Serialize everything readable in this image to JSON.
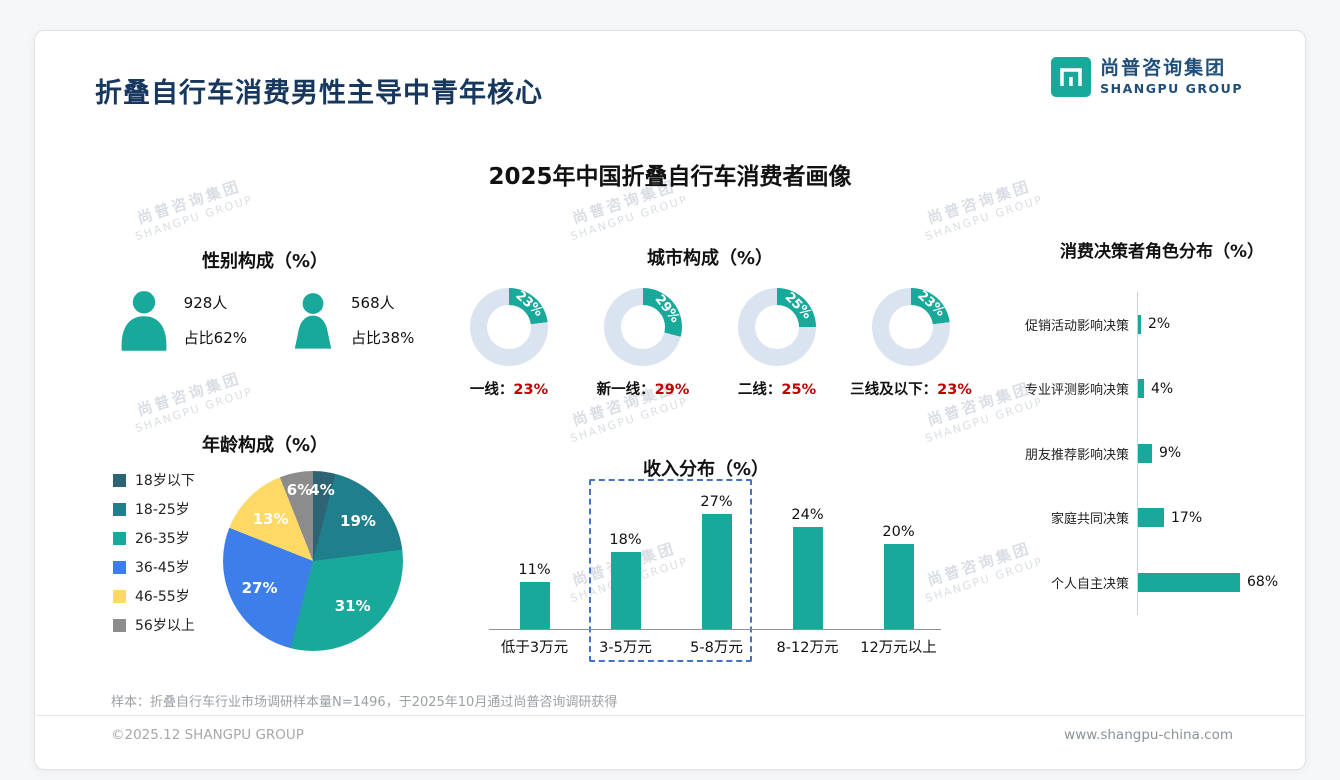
{
  "page": {
    "title": "折叠自行车消费男性主导中青年核心",
    "subtitle": "2025年中国折叠自行车消费者画像",
    "logo": {
      "cn": "尚普咨询集团",
      "en": "SHANGPU GROUP"
    },
    "watermark": {
      "cn": "尚普咨询集团",
      "en": "SHANGPU GROUP"
    },
    "footnote": "样本：折叠自行车行业市场调研样本量N=1496，于2025年10月通过尚普咨询调研获得",
    "footer_left": "©2025.12 SHANGPU GROUP",
    "footer_right": "www.shangpu-china.com"
  },
  "colors": {
    "accent_teal": "#18A99B",
    "navy": "#17375E",
    "red": "#C00000",
    "donut_rest": "#D9E4F0"
  },
  "chart_data": [
    {
      "id": "gender",
      "type": "pictogram",
      "title": "性别构成（%）",
      "series": [
        {
          "name": "男性",
          "count": "928人",
          "share": "占比62%"
        },
        {
          "name": "女性",
          "count": "568人",
          "share": "占比38%"
        }
      ]
    },
    {
      "id": "city",
      "type": "donut",
      "title": "城市构成（%）",
      "categories": [
        "一线",
        "新一线",
        "二线",
        "三线及以下"
      ],
      "values": [
        23,
        29,
        25,
        23
      ],
      "value_labels": [
        "23%",
        "29%",
        "25%",
        "23%"
      ],
      "labels_display": [
        "一线：",
        "新一线：",
        "二线：",
        "三线及以下："
      ]
    },
    {
      "id": "age",
      "type": "pie",
      "title": "年龄构成（%）",
      "categories": [
        "18岁以下",
        "18-25岁",
        "26-35岁",
        "36-45岁",
        "46-55岁",
        "56岁以上"
      ],
      "values": [
        4,
        19,
        31,
        27,
        13,
        6
      ],
      "value_labels": [
        "4%",
        "19%",
        "31%",
        "27%",
        "13%",
        "6%"
      ],
      "colors": [
        "#2E6374",
        "#1F7F8C",
        "#18A99B",
        "#3E7EEB",
        "#FFD966",
        "#8C8C8C"
      ],
      "legend_position": "left"
    },
    {
      "id": "income",
      "type": "bar",
      "title": "收入分布（%）",
      "categories": [
        "低于3万元",
        "3-5万元",
        "5-8万元",
        "8-12万元",
        "12万元以上"
      ],
      "values": [
        11,
        18,
        27,
        24,
        20
      ],
      "value_labels": [
        "11%",
        "18%",
        "27%",
        "24%",
        "20%"
      ],
      "highlight_indices": [
        1,
        2
      ],
      "ylim": [
        0,
        30
      ]
    },
    {
      "id": "decision",
      "type": "hbar",
      "title": "消费决策者角色分布（%）",
      "categories": [
        "促销活动影响决策",
        "专业评测影响决策",
        "朋友推荐影响决策",
        "家庭共同决策",
        "个人自主决策"
      ],
      "values": [
        2,
        4,
        9,
        17,
        68
      ],
      "value_labels": [
        "2%",
        "4%",
        "9%",
        "17%",
        "68%"
      ],
      "xlim": [
        0,
        100
      ]
    }
  ]
}
